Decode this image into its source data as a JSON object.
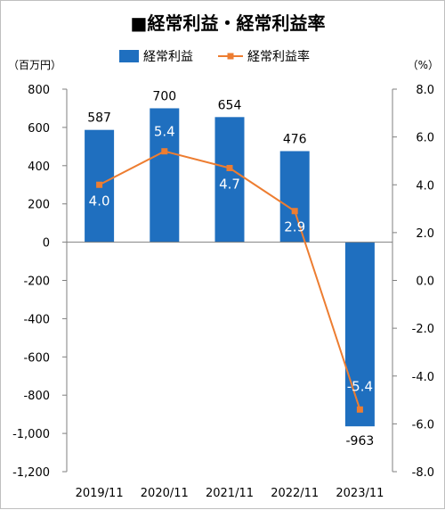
{
  "chart_data": {
    "type": "bar+line",
    "title": "■経常利益・経常利益率",
    "categories": [
      "2019/11",
      "2020/11",
      "2021/11",
      "2022/11",
      "2023/11"
    ],
    "left_axis": {
      "unit": "（百万円）",
      "ylim": [
        -1200,
        800
      ],
      "ticks": [
        800,
        600,
        400,
        200,
        0,
        -200,
        -400,
        -600,
        -800,
        -1000,
        -1200
      ],
      "tick_labels": [
        "800",
        "600",
        "400",
        "200",
        "0",
        "-200",
        "-400",
        "-600",
        "-800",
        "-1,000",
        "-1,200"
      ]
    },
    "right_axis": {
      "unit": "（%）",
      "ylim": [
        -8.0,
        8.0
      ],
      "ticks": [
        8.0,
        6.0,
        4.0,
        2.0,
        0.0,
        -2.0,
        -4.0,
        -6.0,
        -8.0
      ],
      "tick_labels": [
        "8.0",
        "6.0",
        "4.0",
        "2.0",
        "0.0",
        "-2.0",
        "-4.0",
        "-6.0",
        "-8.0"
      ]
    },
    "series": [
      {
        "name": "経常利益",
        "type": "bar",
        "axis": "left",
        "color": "#1f6fbf",
        "values": [
          587,
          700,
          654,
          476,
          -963
        ],
        "labels": [
          "587",
          "700",
          "654",
          "476",
          "-963"
        ]
      },
      {
        "name": "経常利益率",
        "type": "line",
        "axis": "right",
        "color": "#ed7d31",
        "values": [
          4.0,
          5.4,
          4.7,
          2.9,
          -5.4
        ],
        "labels": [
          "4.0",
          "5.4",
          "4.7",
          "2.9",
          "-5.4"
        ]
      }
    ],
    "grid": false,
    "legend": "top"
  }
}
